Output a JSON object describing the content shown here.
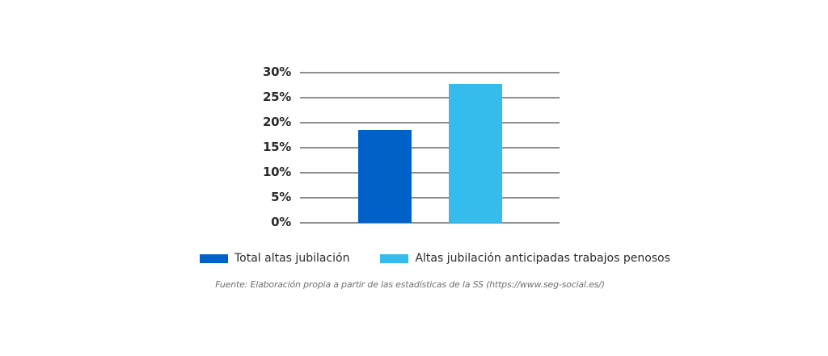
{
  "chart_data": {
    "type": "bar",
    "title": "",
    "xlabel": "",
    "ylabel": "",
    "categories": [
      "Total altas jubilación",
      "Altas jubilación anticipadas trabajos penosos"
    ],
    "values": [
      18.5,
      27.7
    ],
    "colors": [
      "#0061C8",
      "#35BBEC"
    ],
    "yticks": [
      "0%",
      "5%",
      "10%",
      "15%",
      "20%",
      "25%",
      "30%"
    ],
    "ylim": [
      0,
      30
    ],
    "grid": true,
    "legend_position": "bottom",
    "source": "Fuente: Elaboración propia a partir de las estadísticas de la SS (https://www.seg-social.es/)"
  },
  "legend": {
    "items": [
      {
        "label": "Total altas jubilación",
        "color": "#0061C8"
      },
      {
        "label": "Altas jubilación anticipadas trabajos penosos",
        "color": "#35BBEC"
      }
    ]
  },
  "caption": "Fuente: Elaboración propia a partir de las estadísticas de la SS (https://www.seg-social.es/)"
}
